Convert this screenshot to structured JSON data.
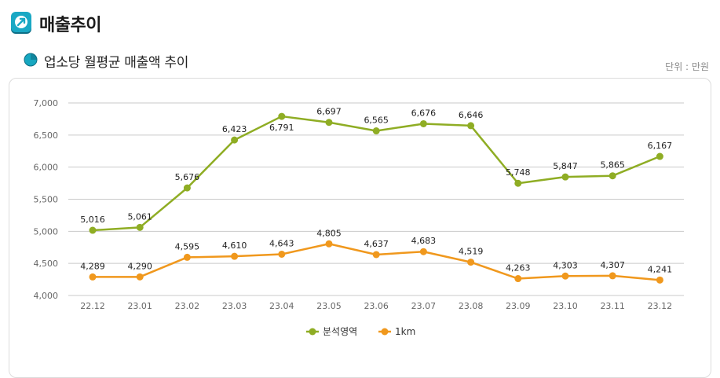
{
  "header": {
    "title": "매출추이"
  },
  "subtitle": "업소당 월평균 매출액 추이",
  "unit_label": "단위 : 만원",
  "colors": {
    "series1": "#8fad24",
    "series2": "#f0981d",
    "icon_teal": "#17a7c0",
    "grid": "#c9c9c9"
  },
  "chart_data": {
    "type": "line",
    "title": "업소당 월평균 매출액 추이",
    "categories": [
      "22.12",
      "23.01",
      "23.02",
      "23.03",
      "23.04",
      "23.05",
      "23.06",
      "23.07",
      "23.08",
      "23.09",
      "23.10",
      "23.11",
      "23.12"
    ],
    "series": [
      {
        "name": "분석영역",
        "values": [
          5016,
          5061,
          5676,
          6423,
          6791,
          6697,
          6565,
          6676,
          6646,
          5748,
          5847,
          5865,
          6167
        ]
      },
      {
        "name": "1km",
        "values": [
          4289,
          4290,
          4595,
          4610,
          4643,
          4805,
          4637,
          4683,
          4519,
          4263,
          4303,
          4307,
          4241
        ]
      }
    ],
    "yticks": [
      "4,000",
      "4,500",
      "5,000",
      "5,500",
      "6,000",
      "6,500",
      "7,000"
    ],
    "ylim": [
      4000,
      7000
    ],
    "xlabel": "",
    "ylabel": "",
    "legend_position": "bottom-center",
    "grid": true
  }
}
